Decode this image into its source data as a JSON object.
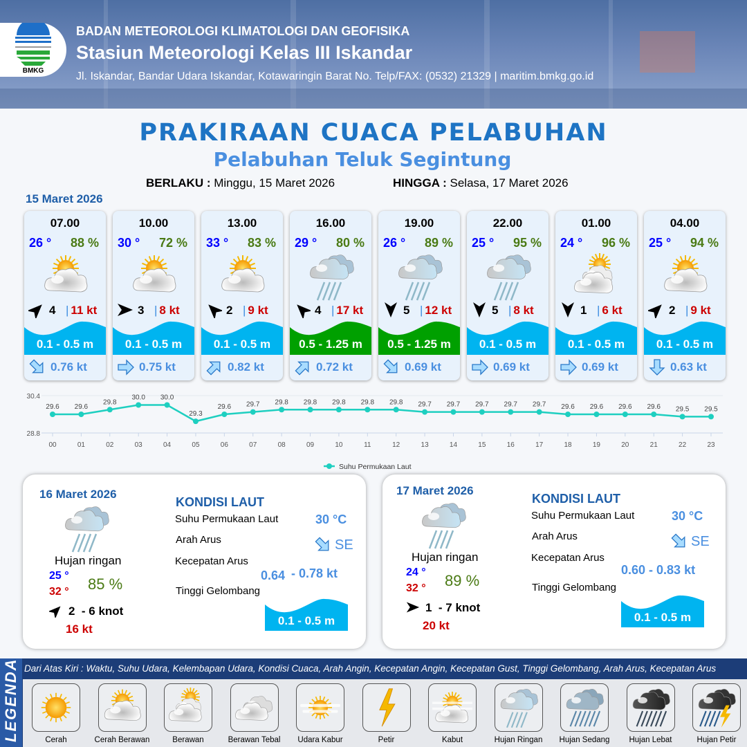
{
  "header": {
    "logo_text": "BMKG",
    "agency": "BADAN METEOROLOGI KLIMATOLOGI DAN GEOFISIKA",
    "station": "Stasiun Meteorologi Kelas III Iskandar",
    "address": "Jl. Iskandar, Bandar Udara Iskandar, Kotawaringin Barat No. Telp/FAX: (0532) 21329 | maritim.bmkg.go.id"
  },
  "title": "PRAKIRAAN CUACA PELABUHAN",
  "subtitle": "Pelabuhan Teluk Segintung",
  "validity": {
    "from_label": "BERLAKU :",
    "from": "Minggu, 15 Maret 2026",
    "to_label": "HINGGA :",
    "to": "Selasa, 17 Maret 2026"
  },
  "day1": {
    "date": "15 Maret 2026",
    "cards": [
      {
        "time": "07.00",
        "temp": "26 °",
        "hum": "88 %",
        "icon": "cerah-berawan",
        "wind_arrow": "north-east",
        "wind": "4",
        "gust": "11 kt",
        "wave": "0.1 - 0.5 m",
        "wave_color": "#00b4f0",
        "current_arrow": "south-east",
        "current": "0.76 kt"
      },
      {
        "time": "10.00",
        "temp": "30 °",
        "hum": "72 %",
        "icon": "cerah-berawan",
        "wind_arrow": "east",
        "wind": "3",
        "gust": "8 kt",
        "wave": "0.1 - 0.5 m",
        "wave_color": "#00b4f0",
        "current_arrow": "east",
        "current": "0.75 kt"
      },
      {
        "time": "13.00",
        "temp": "33 °",
        "hum": "83 %",
        "icon": "cerah-berawan",
        "wind_arrow": "north-west",
        "wind": "2",
        "gust": "9 kt",
        "wave": "0.1 - 0.5 m",
        "wave_color": "#00b4f0",
        "current_arrow": "north-east",
        "current": "0.82 kt"
      },
      {
        "time": "16.00",
        "temp": "29 °",
        "hum": "80 %",
        "icon": "hujan-ringan",
        "wind_arrow": "north-west",
        "wind": "4",
        "gust": "17 kt",
        "wave": "0.5 - 1.25 m",
        "wave_color": "#00a000",
        "current_arrow": "north-east",
        "current": "0.72 kt"
      },
      {
        "time": "19.00",
        "temp": "26 °",
        "hum": "89 %",
        "icon": "hujan-ringan",
        "wind_arrow": "south",
        "wind": "5",
        "gust": "12 kt",
        "wave": "0.5 - 1.25 m",
        "wave_color": "#00a000",
        "current_arrow": "south-east",
        "current": "0.69 kt"
      },
      {
        "time": "22.00",
        "temp": "25 °",
        "hum": "95 %",
        "icon": "hujan-ringan",
        "wind_arrow": "south",
        "wind": "5",
        "gust": "8 kt",
        "wave": "0.1 - 0.5 m",
        "wave_color": "#00b4f0",
        "current_arrow": "east",
        "current": "0.69 kt"
      },
      {
        "time": "01.00",
        "temp": "24 °",
        "hum": "96 %",
        "icon": "berawan",
        "wind_arrow": "south",
        "wind": "1",
        "gust": "6 kt",
        "wave": "0.1 - 0.5 m",
        "wave_color": "#00b4f0",
        "current_arrow": "east",
        "current": "0.69 kt"
      },
      {
        "time": "04.00",
        "temp": "25 °",
        "hum": "94 %",
        "icon": "cerah-berawan",
        "wind_arrow": "north-east",
        "wind": "2",
        "gust": "9 kt",
        "wave": "0.1 - 0.5 m",
        "wave_color": "#00b4f0",
        "current_arrow": "south",
        "current": "0.63 kt"
      }
    ]
  },
  "chart_data": {
    "type": "line",
    "x": [
      "00",
      "01",
      "02",
      "03",
      "04",
      "05",
      "06",
      "07",
      "08",
      "09",
      "10",
      "11",
      "12",
      "13",
      "14",
      "15",
      "16",
      "17",
      "18",
      "19",
      "20",
      "21",
      "22",
      "23"
    ],
    "series": [
      {
        "name": "Suhu Permukaan Laut",
        "values": [
          29.6,
          29.6,
          29.8,
          30.0,
          30.0,
          29.3,
          29.6,
          29.7,
          29.8,
          29.8,
          29.8,
          29.8,
          29.8,
          29.7,
          29.7,
          29.7,
          29.7,
          29.7,
          29.6,
          29.6,
          29.6,
          29.6,
          29.5,
          29.5
        ],
        "color": "#1ecfc0"
      }
    ],
    "yticks": [
      "30.4",
      "28.8"
    ],
    "ylim": [
      28.8,
      30.4
    ],
    "legend": "bottom-center"
  },
  "panels": [
    {
      "date": "16 Maret 2026",
      "icon": "hujan-ringan",
      "condition": "Hujan ringan",
      "tmin": "25 °",
      "tmax": "32 °",
      "hum": "85 %",
      "wind_arrow": "north-east",
      "wind": "2  - 6 knot",
      "gust": "16 kt",
      "sea": {
        "title": "KONDISI LAUT",
        "sst_label": "Suhu Permukaan Laut",
        "sst": "30 °C",
        "dir_label": "Arah Arus",
        "dir_arrow": "south-east",
        "dir": "SE",
        "speed_label": "Kecepatan Arus",
        "speed_a": "0.64",
        "speed_b": "- 0.78 kt",
        "wave_label": "Tinggi Gelombang",
        "wave": "0.1 - 0.5 m"
      }
    },
    {
      "date": "17 Maret 2026",
      "icon": "hujan-ringan",
      "condition": "Hujan ringan",
      "tmin": "24 °",
      "tmax": "32 °",
      "hum": "89 %",
      "wind_arrow": "east",
      "wind": "1  - 7 knot",
      "gust": "20 kt",
      "sea": {
        "title": "KONDISI LAUT",
        "sst_label": "Suhu Permukaan Laut",
        "sst": "30 °C",
        "dir_label": "Arah Arus",
        "dir_arrow": "south-east",
        "dir": "SE",
        "speed_label": "Kecepatan Arus",
        "speed_a": "0.60 - 0.83 kt",
        "speed_b": "",
        "wave_label": "Tinggi Gelombang",
        "wave": "0.1 - 0.5 m"
      }
    }
  ],
  "legend": {
    "title": "LEGENDA",
    "description": "Dari Atas Kiri : Waktu, Suhu Udara, Kelembapan Udara, Kondisi Cuaca, Arah Angin, Kecepatan Angin, Kecepatan Gust, Tinggi Gelombang, Arah Arus, Kecepatan Arus",
    "items": [
      {
        "label": "Cerah",
        "icon": "cerah"
      },
      {
        "label": "Cerah Berawan",
        "icon": "cerah-berawan"
      },
      {
        "label": "Berawan",
        "icon": "berawan"
      },
      {
        "label": "Berawan Tebal",
        "icon": "berawan-tebal"
      },
      {
        "label": "Udara Kabur",
        "icon": "udara-kabur"
      },
      {
        "label": "Petir",
        "icon": "petir"
      },
      {
        "label": "Kabut",
        "icon": "kabut"
      },
      {
        "label": "Hujan Ringan",
        "icon": "hujan-ringan"
      },
      {
        "label": "Hujan Sedang",
        "icon": "hujan-sedang"
      },
      {
        "label": "Hujan Lebat",
        "icon": "hujan-lebat"
      },
      {
        "label": "Hujan Petir",
        "icon": "hujan-petir"
      }
    ]
  }
}
